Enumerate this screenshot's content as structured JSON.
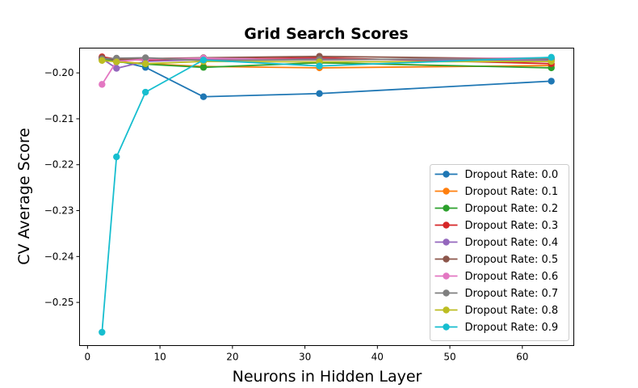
{
  "chart_data": {
    "type": "line",
    "title": "Grid Search Scores",
    "xlabel": "Neurons in Hidden Layer",
    "ylabel": "CV Average Score",
    "xlim": [
      -1.1,
      67.1
    ],
    "ylim": [
      -0.2594,
      -0.1946
    ],
    "xticks": [
      0,
      10,
      20,
      30,
      40,
      50,
      60
    ],
    "yticks": [
      -0.25,
      -0.24,
      -0.23,
      -0.22,
      -0.21,
      -0.2
    ],
    "xtick_labels": [
      "0",
      "10",
      "20",
      "30",
      "40",
      "50",
      "60"
    ],
    "ytick_labels": [
      "−0.25",
      "−0.24",
      "−0.23",
      "−0.22",
      "−0.21",
      "−0.20"
    ],
    "grid": false,
    "legend_position": "lower-right",
    "x": [
      2,
      4,
      8,
      16,
      32,
      64
    ],
    "series": [
      {
        "name": "Dropout Rate: 0.0",
        "color": "#1f77b4",
        "values": [
          -0.1967,
          -0.1973,
          -0.1988,
          -0.2052,
          -0.2045,
          -0.2018
        ]
      },
      {
        "name": "Dropout Rate: 0.1",
        "color": "#ff7f0e",
        "values": [
          -0.1971,
          -0.1975,
          -0.198,
          -0.1986,
          -0.1989,
          -0.1984
        ]
      },
      {
        "name": "Dropout Rate: 0.2",
        "color": "#2ca02c",
        "values": [
          -0.197,
          -0.1976,
          -0.1981,
          -0.1988,
          -0.1978,
          -0.1989
        ]
      },
      {
        "name": "Dropout Rate: 0.3",
        "color": "#d62728",
        "values": [
          -0.1965,
          -0.197,
          -0.1972,
          -0.197,
          -0.1967,
          -0.198
        ]
      },
      {
        "name": "Dropout Rate: 0.4",
        "color": "#9467bd",
        "values": [
          -0.1969,
          -0.199,
          -0.1975,
          -0.1971,
          -0.197,
          -0.1973
        ]
      },
      {
        "name": "Dropout Rate: 0.5",
        "color": "#8c564b",
        "values": [
          -0.1967,
          -0.1972,
          -0.1969,
          -0.1967,
          -0.1964,
          -0.197
        ]
      },
      {
        "name": "Dropout Rate: 0.6",
        "color": "#e377c2",
        "values": [
          -0.2025,
          -0.1975,
          -0.197,
          -0.1968,
          -0.1972,
          -0.1967
        ]
      },
      {
        "name": "Dropout Rate: 0.7",
        "color": "#7f7f7f",
        "values": [
          -0.197,
          -0.1968,
          -0.1967,
          -0.1973,
          -0.1971,
          -0.1969
        ]
      },
      {
        "name": "Dropout Rate: 0.8",
        "color": "#bcbd22",
        "values": [
          -0.1973,
          -0.1976,
          -0.198,
          -0.1975,
          -0.1976,
          -0.1975
        ]
      },
      {
        "name": "Dropout Rate: 0.9",
        "color": "#17becf",
        "values": [
          -0.2565,
          -0.2183,
          -0.2042,
          -0.1972,
          -0.1985,
          -0.1966
        ]
      }
    ]
  }
}
